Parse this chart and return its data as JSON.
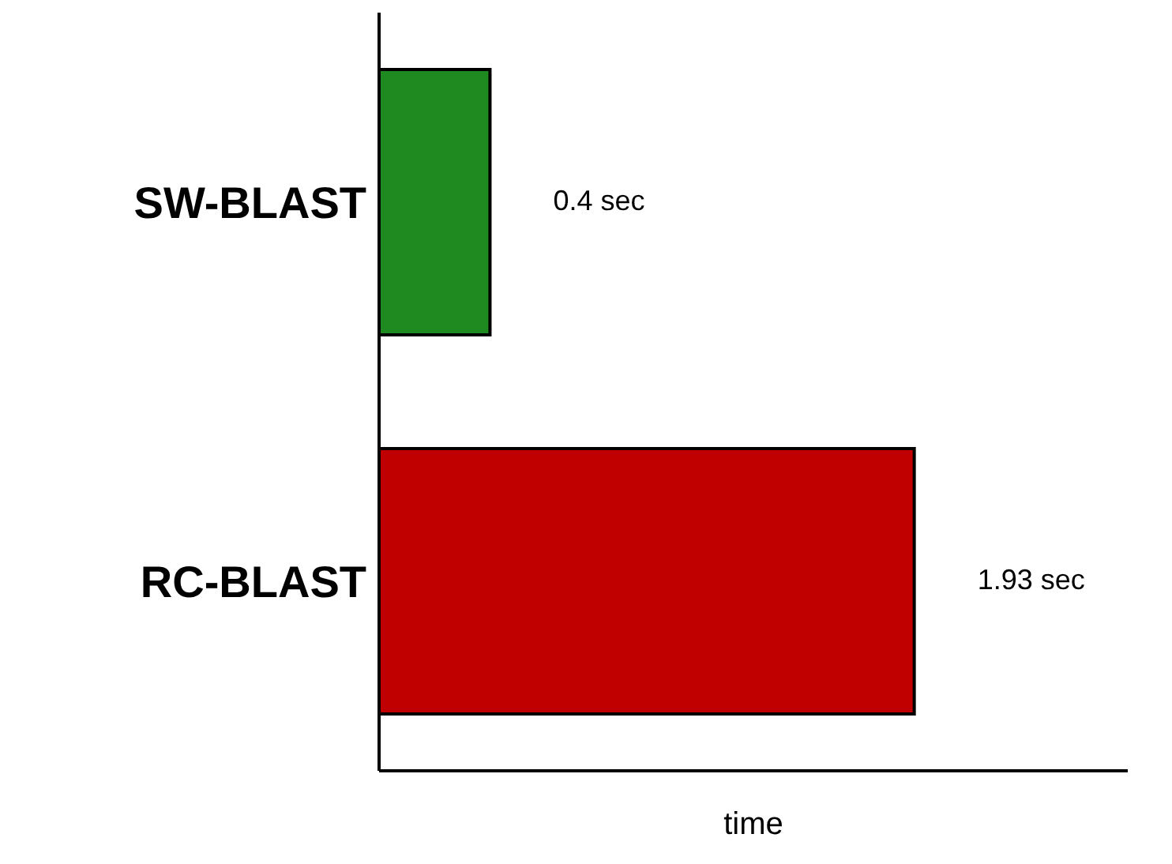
{
  "chart_data": {
    "type": "bar",
    "orientation": "horizontal",
    "xlabel": "time",
    "categories": [
      "SW-BLAST",
      "RC-BLAST"
    ],
    "values": [
      0.4,
      1.93
    ],
    "colors": [
      "#1f8a1f",
      "#c00000"
    ],
    "value_labels": [
      "0.4 sec",
      "1.93 sec"
    ],
    "xlim": [
      0,
      2.7
    ]
  }
}
